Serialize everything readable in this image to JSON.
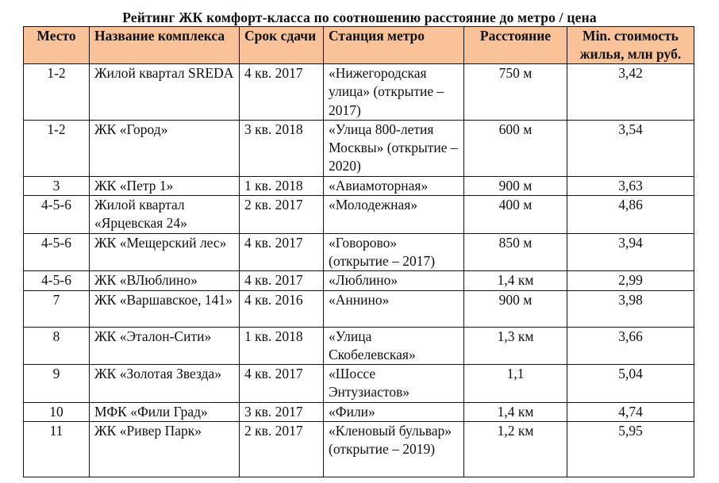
{
  "document": {
    "title": "Рейтинг ЖК комфорт-класса по соотношению расстояние до метро / цена",
    "header_color": "#f9c298"
  },
  "table": {
    "headers": [
      "Место",
      "Название комплекса",
      "Срок сдачи",
      "Станция метро",
      "Расстояние",
      "Min. стоимость жилья, млн руб."
    ],
    "rows": [
      {
        "place": "1-2",
        "name": "Жилой квартал SREDA",
        "deadline": "4 кв. 2017",
        "station": "«Нижегородская улица» (открытие – 2017)",
        "distance": "750 м",
        "min_price": "3,42"
      },
      {
        "place": "1-2",
        "name": "ЖК «Город»",
        "deadline": "3 кв. 2018",
        "station": "«Улица 800-летия Москвы» (открытие – 2020)",
        "distance": "600 м",
        "min_price": "3,54"
      },
      {
        "place": "3",
        "name": "ЖК «Петр 1»",
        "deadline": "1 кв. 2018",
        "station": "«Авиамоторная»",
        "distance": "900 м",
        "min_price": "3,63"
      },
      {
        "place": "4-5-6",
        "name": "Жилой квартал «Ярцевская 24»",
        "deadline": "2 кв. 2017",
        "station": "«Молодежная»",
        "distance": "400 м",
        "min_price": "4,86"
      },
      {
        "place": "4-5-6",
        "name": "ЖК «Мещерский лес»",
        "deadline": "4 кв. 2017",
        "station": "«Говорово» (открытие – 2017)",
        "distance": "850 м",
        "min_price": "3,94"
      },
      {
        "place": "4-5-6",
        "name": "ЖК «ВЛюблино»",
        "deadline": "4 кв. 2017",
        "station": "«Люблино»",
        "distance": "1,4 км",
        "min_price": "2,99"
      },
      {
        "place": "7",
        "name": "ЖК «Варшавское, 141»",
        "deadline": "4 кв. 2016",
        "station": "«Аннино»",
        "distance": "900 м",
        "min_price": "3,98"
      },
      {
        "place": "8",
        "name": "ЖК «Эталон-Сити»",
        "deadline": "1 кв. 2018",
        "station": "«Улица Скобелевская»",
        "distance": "1,3 км",
        "min_price": "3,66"
      },
      {
        "place": "9",
        "name": "ЖК «Золотая Звезда»",
        "deadline": "4 кв. 2017",
        "station": "«Шоссе Энтузиастов»",
        "distance": "1,1",
        "min_price": "5,04"
      },
      {
        "place": "10",
        "name": "МФК «Фили Град»",
        "deadline": "3 кв. 2017",
        "station": "«Фили»",
        "distance": "1,4 км",
        "min_price": "4,74"
      },
      {
        "place": "11",
        "name": "ЖК «Ривер Парк»",
        "deadline": "2 кв. 2017",
        "station": "«Кленовый бульвар» (открытие – 2019)",
        "distance": "1,2 км",
        "min_price": "5,95"
      }
    ]
  }
}
